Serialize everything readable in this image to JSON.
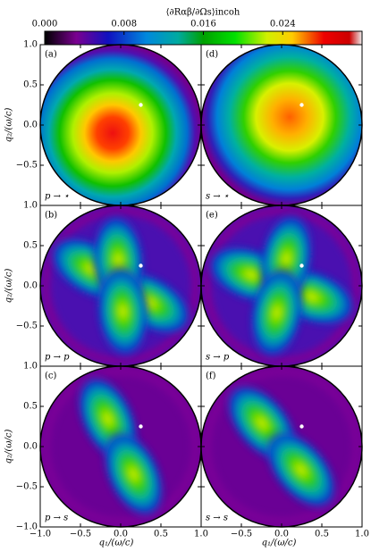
{
  "chart_data": {
    "type": "heatmap-grid",
    "colorbar": {
      "title": "⟨∂Rαβ/∂Ωs⟩incoh",
      "clim": [
        0,
        0.032
      ],
      "ticks": [
        {
          "value": 0,
          "label": "0.000"
        },
        0.008,
        0.016,
        0.024
      ]
    },
    "xlabel": "q₁/(ω/c)",
    "ylabel": "q₂/(ω/c)",
    "xlim": [
      -1,
      1
    ],
    "ylim": [
      -1,
      1
    ],
    "xticks": [
      {
        "value": -1,
        "label": "−1.0"
      },
      {
        "value": -0.5,
        "label": "−0.5"
      },
      {
        "value": 0,
        "label": "0.0"
      },
      {
        "value": 0.5,
        "label": "0.5"
      },
      {
        "value": 1,
        "label": "1.0"
      }
    ],
    "yticks": [
      {
        "value": -1,
        "label": "−1.0"
      },
      {
        "value": -0.5,
        "label": "−0.5"
      },
      {
        "value": 0,
        "label": "0.0"
      },
      {
        "value": 0.5,
        "label": "0.5"
      },
      {
        "value": 1,
        "label": "1.0"
      }
    ],
    "panels": [
      {
        "label": "(a)",
        "process": "p → ⋆"
      },
      {
        "label": "(d)",
        "process": "s → ⋆"
      },
      {
        "label": "(b)",
        "process": "p → p"
      },
      {
        "label": "(e)",
        "process": "s → p"
      },
      {
        "label": "(c)",
        "process": "p → s"
      },
      {
        "label": "(f)",
        "process": "s → s"
      }
    ]
  }
}
